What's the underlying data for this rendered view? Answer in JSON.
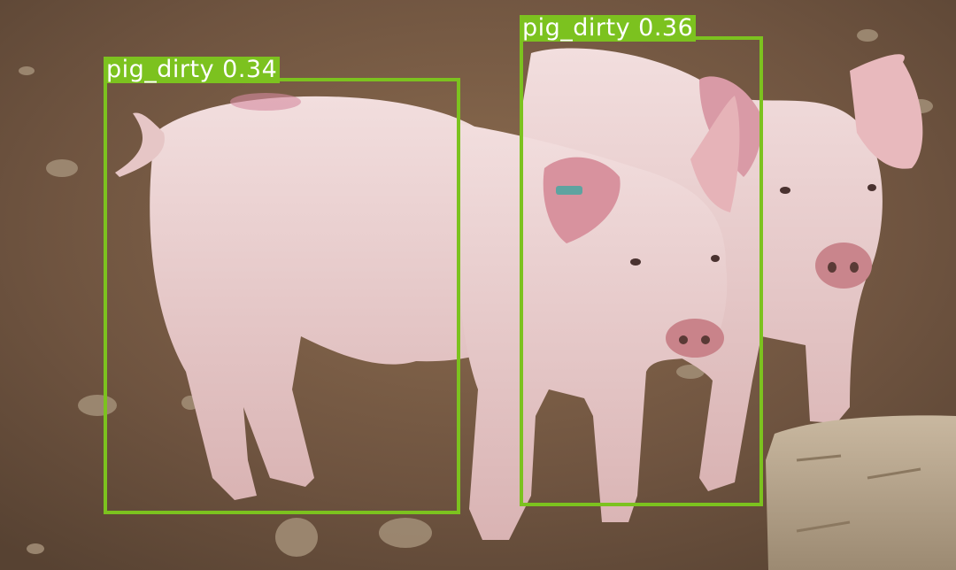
{
  "detections": [
    {
      "label": "pig_dirty",
      "score": "0.34",
      "text": "pig_dirty 0.34"
    },
    {
      "label": "pig_dirty",
      "score": "0.36",
      "text": "pig_dirty 0.36"
    }
  ],
  "colors": {
    "box": "#7cc21f",
    "label_text": "#ffffff",
    "ground": "#7a5e45",
    "pig": "#e9cfcf"
  }
}
